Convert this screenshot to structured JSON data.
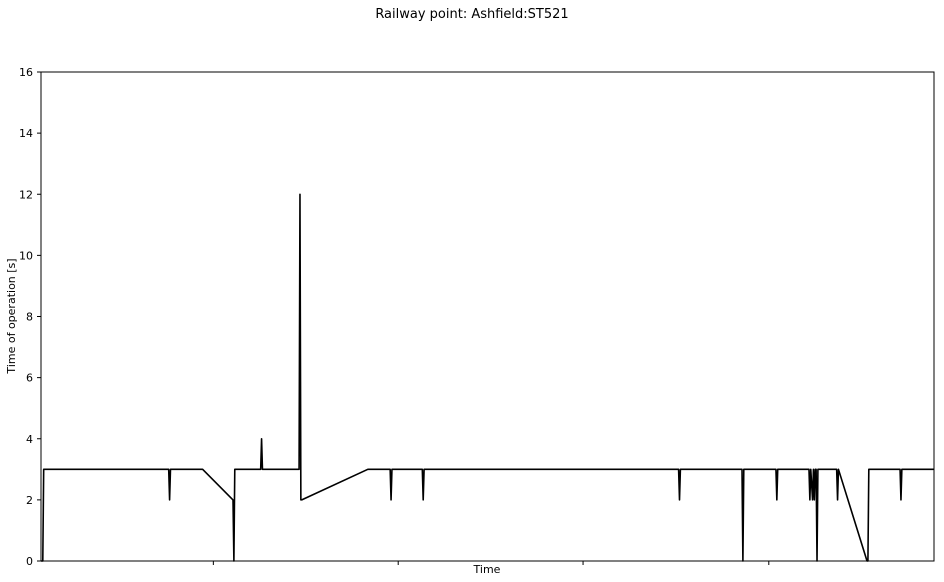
{
  "chart_data": {
    "type": "line",
    "title": "Railway point: Ashfield:ST521",
    "xlabel": "Time",
    "ylabel": "Time of operation [s]",
    "ylim": [
      0,
      16
    ],
    "xlim": [
      0,
      1000
    ],
    "yticks": [
      0,
      2,
      4,
      6,
      8,
      10,
      12,
      14,
      16
    ],
    "xticks": [
      193,
      400,
      607,
      815
    ],
    "grid": false,
    "legend": "none",
    "line_color": "#000000",
    "series": [
      {
        "x": [
          0,
          2,
          3,
          143,
          144,
          145,
          181,
          215,
          216,
          217,
          246,
          247,
          248,
          289,
          290,
          291,
          292,
          366,
          391,
          392,
          393,
          427,
          428,
          429,
          714,
          715,
          716,
          785,
          786,
          787,
          823,
          824,
          825,
          860,
          861,
          862,
          864,
          865,
          866,
          867,
          868,
          869,
          870,
          871,
          891,
          892,
          893,
          925,
          926,
          927,
          928,
          962,
          963,
          964,
          1000
        ],
        "y": [
          0,
          0,
          3,
          3,
          2,
          3,
          3,
          2,
          0,
          3,
          3,
          4,
          3,
          3,
          12,
          2,
          2,
          3,
          3,
          2,
          3,
          3,
          2,
          3,
          3,
          2,
          3,
          3,
          0,
          3,
          3,
          2,
          3,
          3,
          2,
          3,
          2,
          3,
          2,
          3,
          3,
          0,
          3,
          3,
          3,
          2,
          3,
          0,
          0,
          3,
          3,
          3,
          2,
          3,
          3
        ]
      }
    ]
  }
}
